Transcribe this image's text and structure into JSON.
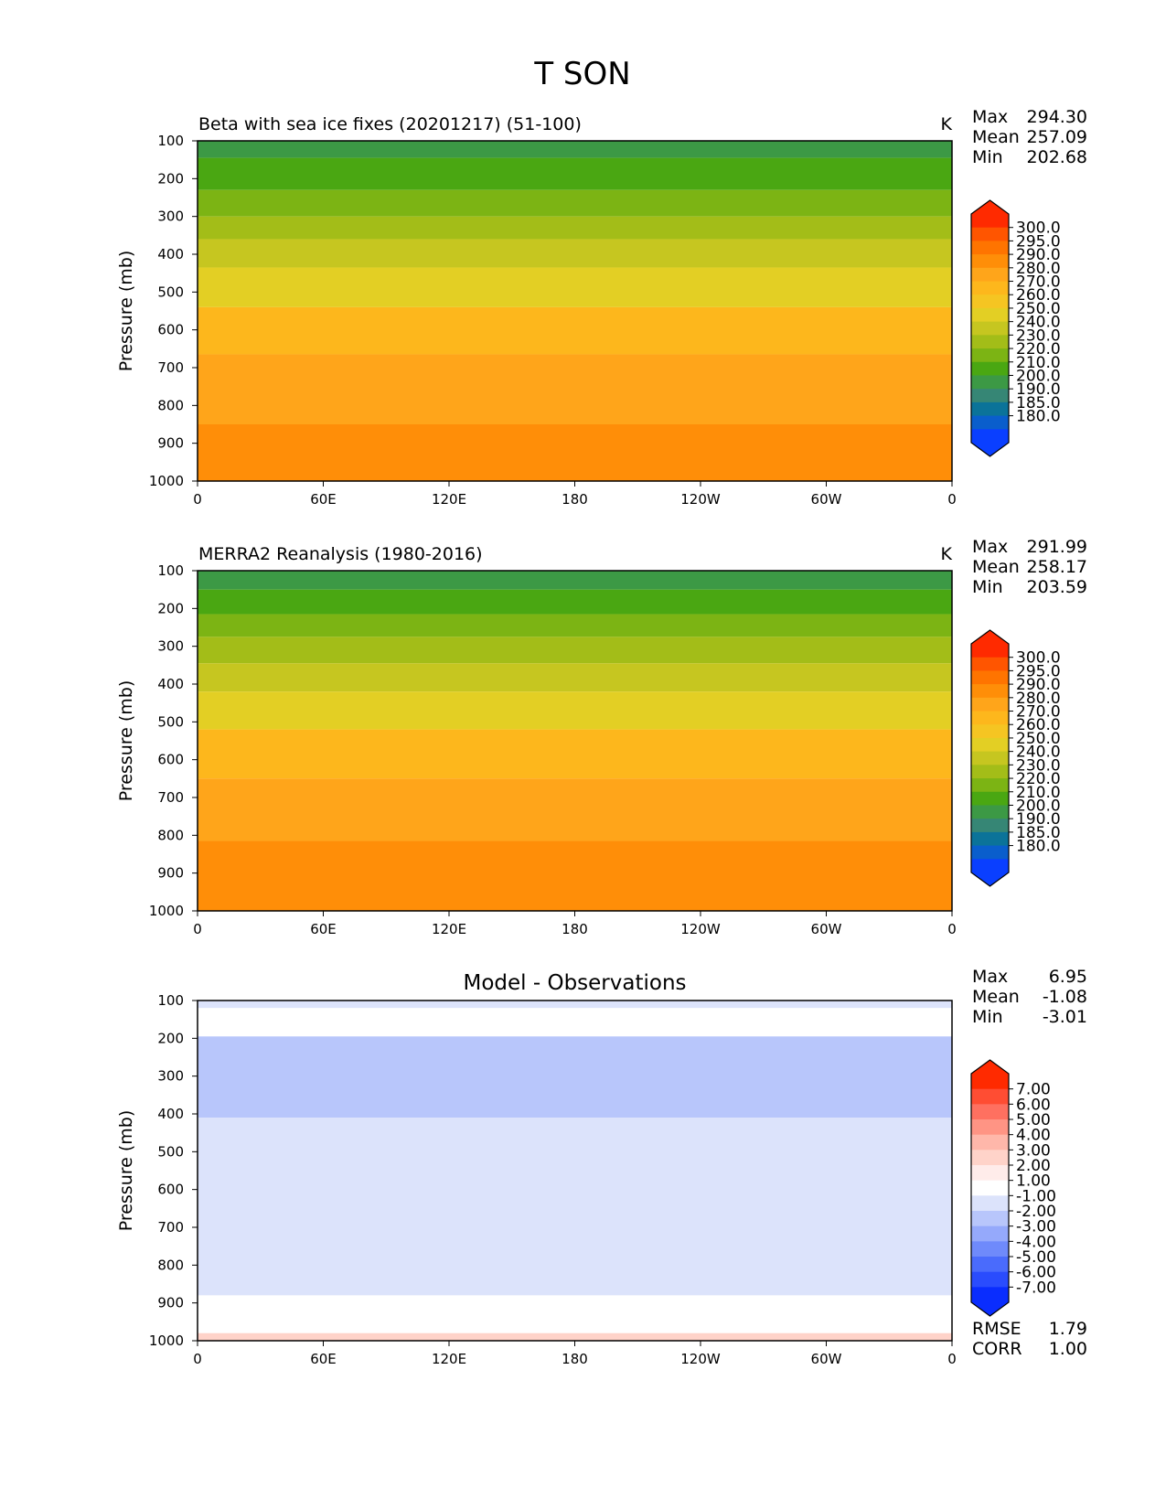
{
  "figure": {
    "title": "T SON"
  },
  "chart_data": [
    {
      "type": "contour",
      "title": "Beta with sea ice fixes (20201217) (51-100)",
      "units": "K",
      "ylabel": "Pressure (mb)",
      "xticks": [
        "0",
        "60E",
        "120E",
        "180",
        "120W",
        "60W",
        "0"
      ],
      "yticks": [
        "100",
        "200",
        "300",
        "400",
        "500",
        "600",
        "700",
        "800",
        "900",
        "1000"
      ],
      "ylim": [
        100,
        1000
      ],
      "stats": [
        {
          "label": "Max",
          "value": "294.30"
        },
        {
          "label": "Mean",
          "value": "257.09"
        },
        {
          "label": "Min",
          "value": "202.68"
        }
      ],
      "colorbar": {
        "labels": [
          "300.0",
          "295.0",
          "290.0",
          "280.0",
          "270.0",
          "260.0",
          "250.0",
          "240.0",
          "230.0",
          "220.0",
          "210.0",
          "200.0",
          "190.0",
          "185.0",
          "180.0"
        ],
        "colors": [
          "#ff2a00",
          "#ff5500",
          "#ff7400",
          "#ff8e08",
          "#ffa51a",
          "#fdb71c",
          "#f5c522",
          "#e3cf24",
          "#c6c620",
          "#a3bd18",
          "#7cb414",
          "#4aa712",
          "#3c9945",
          "#368675",
          "#0b7399",
          "#0a5ecc",
          "#0a3fff"
        ],
        "arrow_top": "#ff2a00",
        "arrow_bottom": "#0a3fff"
      },
      "contour_bands": [
        {
          "p": 145,
          "color": "#3c9945"
        },
        {
          "p": 230,
          "color": "#4aa712"
        },
        {
          "p": 300,
          "color": "#7cb414"
        },
        {
          "p": 360,
          "color": "#a3bd18"
        },
        {
          "p": 435,
          "color": "#c6c620"
        },
        {
          "p": 540,
          "color": "#e3cf24"
        },
        {
          "p": 665,
          "color": "#fdb71c"
        },
        {
          "p": 850,
          "color": "#ffa51a"
        },
        {
          "p": 1000,
          "color": "#ff8e08"
        }
      ]
    },
    {
      "type": "contour",
      "title": "MERRA2 Reanalysis (1980-2016)",
      "units": "K",
      "ylabel": "Pressure (mb)",
      "xticks": [
        "0",
        "60E",
        "120E",
        "180",
        "120W",
        "60W",
        "0"
      ],
      "yticks": [
        "100",
        "200",
        "300",
        "400",
        "500",
        "600",
        "700",
        "800",
        "900",
        "1000"
      ],
      "ylim": [
        100,
        1000
      ],
      "stats": [
        {
          "label": "Max",
          "value": "291.99"
        },
        {
          "label": "Mean",
          "value": "258.17"
        },
        {
          "label": "Min",
          "value": "203.59"
        }
      ],
      "colorbar": {
        "labels": [
          "300.0",
          "295.0",
          "290.0",
          "280.0",
          "270.0",
          "260.0",
          "250.0",
          "240.0",
          "230.0",
          "220.0",
          "210.0",
          "200.0",
          "190.0",
          "185.0",
          "180.0"
        ],
        "colors": [
          "#ff2a00",
          "#ff5500",
          "#ff7400",
          "#ff8e08",
          "#ffa51a",
          "#fdb71c",
          "#f5c522",
          "#e3cf24",
          "#c6c620",
          "#a3bd18",
          "#7cb414",
          "#4aa712",
          "#3c9945",
          "#368675",
          "#0b7399",
          "#0a5ecc",
          "#0a3fff"
        ],
        "arrow_top": "#ff2a00",
        "arrow_bottom": "#0a3fff"
      },
      "contour_bands": [
        {
          "p": 150,
          "color": "#3c9945"
        },
        {
          "p": 215,
          "color": "#4aa712"
        },
        {
          "p": 275,
          "color": "#7cb414"
        },
        {
          "p": 345,
          "color": "#a3bd18"
        },
        {
          "p": 420,
          "color": "#c6c620"
        },
        {
          "p": 520,
          "color": "#e3cf24"
        },
        {
          "p": 650,
          "color": "#fdb71c"
        },
        {
          "p": 815,
          "color": "#ffa51a"
        },
        {
          "p": 1000,
          "color": "#ff8e08"
        }
      ]
    },
    {
      "type": "contour",
      "title": "Model - Observations",
      "units": "",
      "ylabel": "Pressure (mb)",
      "xticks": [
        "0",
        "60E",
        "120E",
        "180",
        "120W",
        "60W",
        "0"
      ],
      "yticks": [
        "100",
        "200",
        "300",
        "400",
        "500",
        "600",
        "700",
        "800",
        "900",
        "1000"
      ],
      "ylim": [
        100,
        1000
      ],
      "stats": [
        {
          "label": "Max",
          "value": "6.95"
        },
        {
          "label": "Mean",
          "value": "-1.08"
        },
        {
          "label": "Min",
          "value": "-3.01"
        }
      ],
      "extra_stats": [
        {
          "label": "RMSE",
          "value": "1.79"
        },
        {
          "label": "CORR",
          "value": "1.00"
        }
      ],
      "colorbar": {
        "labels": [
          "7.00",
          "6.00",
          "5.00",
          "4.00",
          "3.00",
          "2.00",
          "1.00",
          "-1.00",
          "-2.00",
          "-3.00",
          "-4.00",
          "-5.00",
          "-6.00",
          "-7.00"
        ],
        "colors": [
          "#ff2a00",
          "#ff4d33",
          "#ff7060",
          "#ff9484",
          "#ffb7aa",
          "#ffd3c9",
          "#ffecea",
          "#ffffff",
          "#dce3fb",
          "#b8c6fb",
          "#95a9fb",
          "#6f8afb",
          "#4a6bfc",
          "#2a4cfd",
          "#0a2dfe"
        ],
        "arrow_top": "#ff2a00",
        "arrow_bottom": "#0a2dfe"
      },
      "contour_bands": [
        {
          "p": 120,
          "color": "#dce3fb"
        },
        {
          "p": 195,
          "color": "#ffffff"
        },
        {
          "p": 410,
          "color": "#b8c6fb"
        },
        {
          "p": 880,
          "color": "#dce3fb"
        },
        {
          "p": 980,
          "color": "#ffffff"
        },
        {
          "p": 1000,
          "color": "#ffd3c9"
        }
      ]
    }
  ]
}
